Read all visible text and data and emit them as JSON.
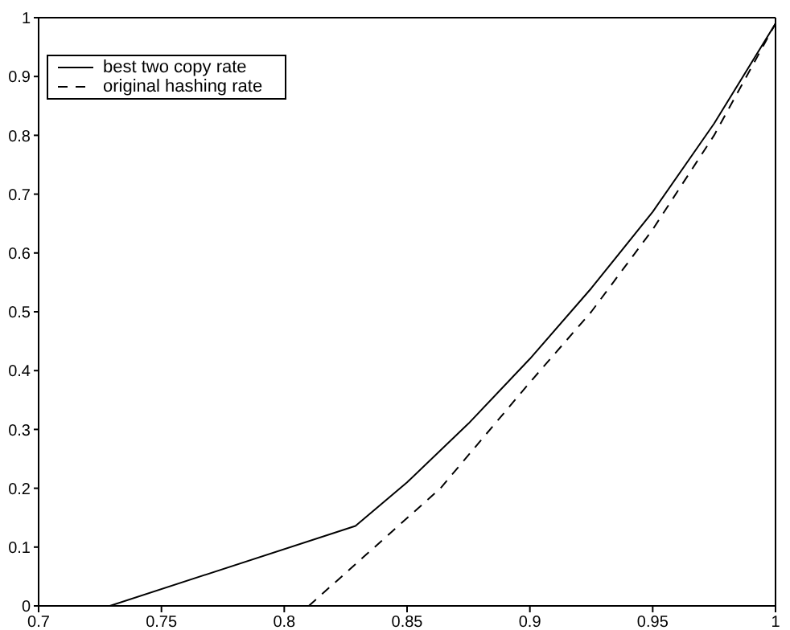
{
  "chart_data": {
    "type": "line",
    "xlim": [
      0.7,
      1
    ],
    "xticks": [
      0.7,
      0.75,
      0.8,
      0.85,
      0.9,
      0.95,
      1
    ],
    "ylim": [
      0,
      1
    ],
    "yticks": [
      0,
      0.1,
      0.2,
      0.3,
      0.4,
      0.5,
      0.6,
      0.7,
      0.8,
      0.9,
      1
    ],
    "legend": "top left",
    "marker": "none",
    "series": [
      {
        "name": "best two copy rate",
        "color": "#000000",
        "line_style": "solid",
        "x": [
          0.729,
          0.829,
          0.85,
          0.875,
          0.9,
          0.925,
          0.95,
          0.975,
          1
        ],
        "values": [
          0,
          0.136,
          0.21,
          0.31,
          0.42,
          0.54,
          0.67,
          0.82,
          0.99
        ]
      },
      {
        "name": "original hashing rate",
        "color": "#000000",
        "line_style": "dashed",
        "x": [
          0.81,
          0.8636,
          0.9,
          0.925,
          0.95,
          0.975,
          1
        ],
        "values": [
          0,
          0.2,
          0.38,
          0.5,
          0.64,
          0.8,
          0.99
        ]
      }
    ]
  }
}
